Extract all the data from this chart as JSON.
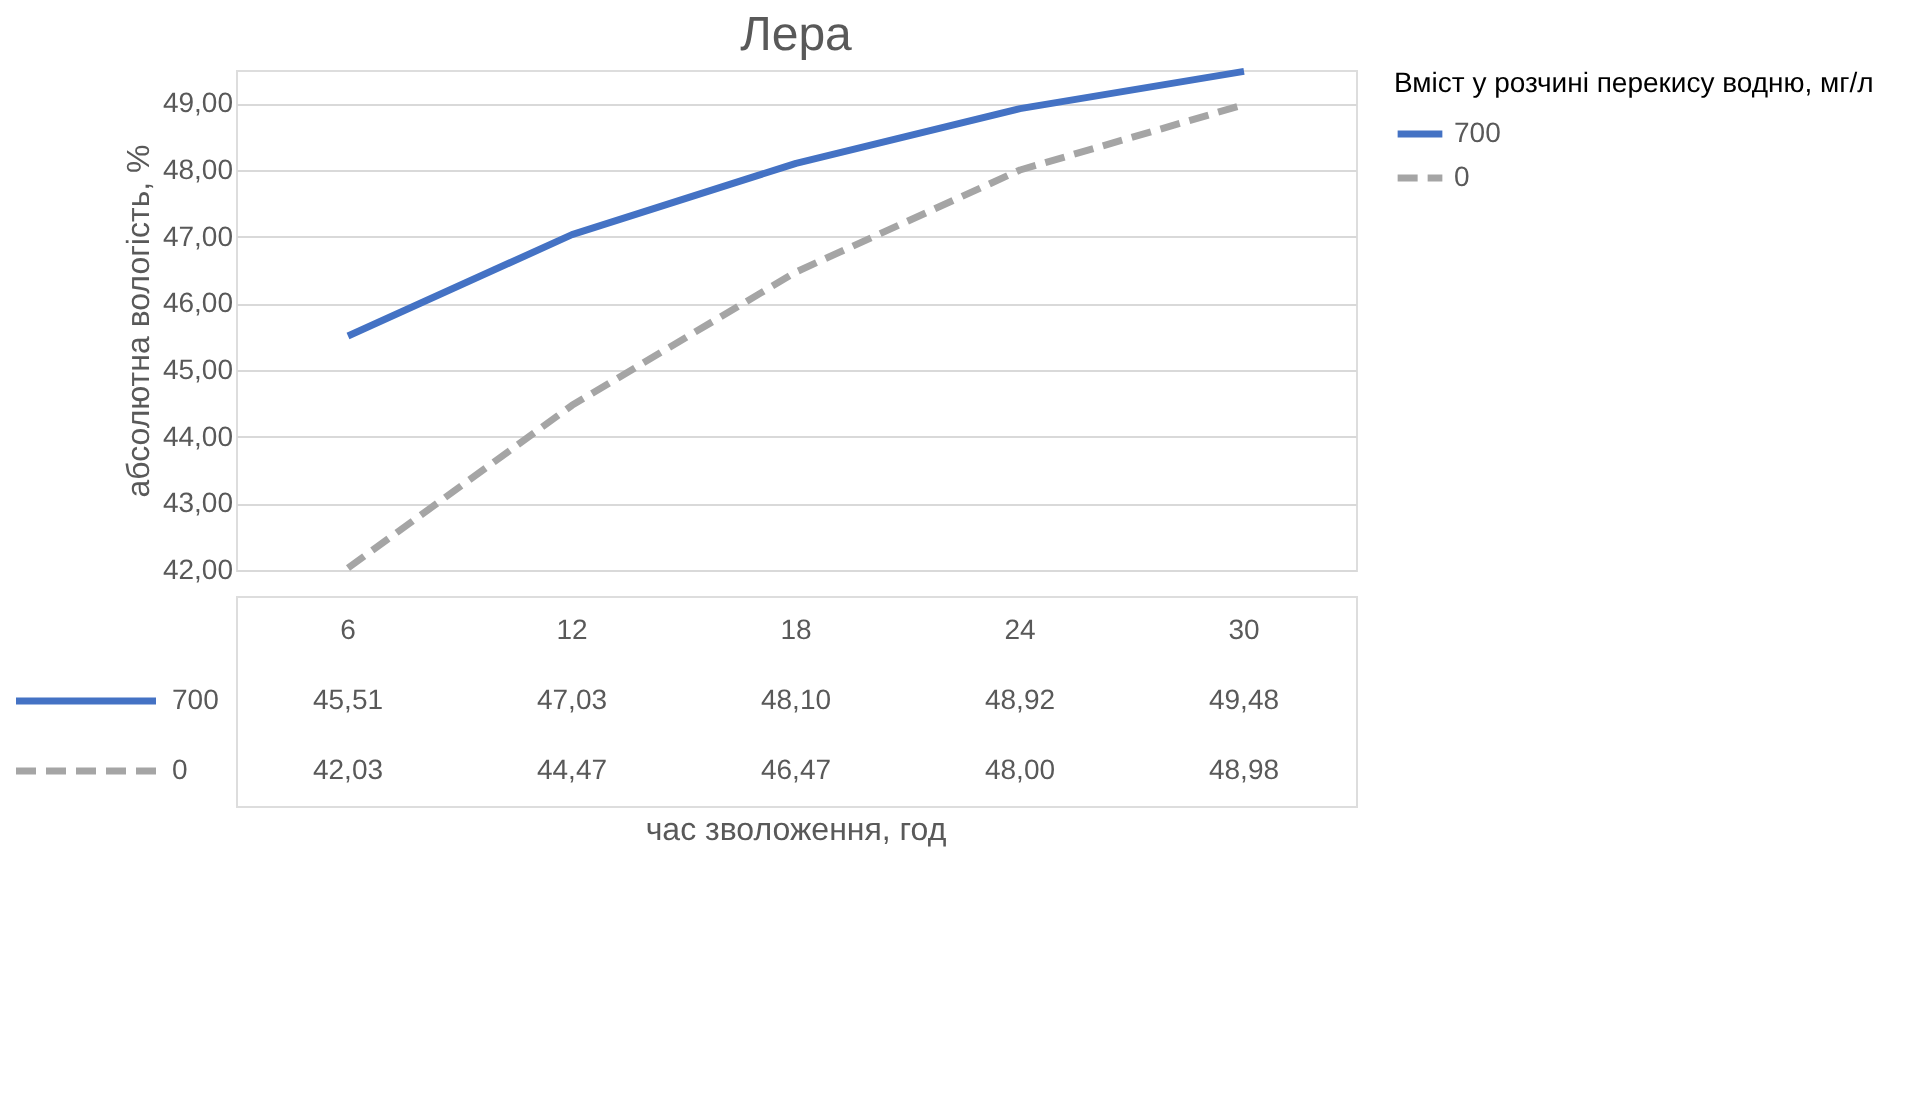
{
  "chart_data": {
    "type": "line",
    "title": "Лера",
    "annotations": [
      "час зволоження, год"
    ],
    "ylabel": "абсолютна вологість, %",
    "legend_title": "Вміст у розчині перекису водню, мг/л",
    "categories": [
      "6",
      "12",
      "18",
      "24",
      "30"
    ],
    "series": [
      {
        "name": "700",
        "color": "#4472c4",
        "line_style": "solid",
        "values": [
          45.51,
          47.03,
          48.1,
          48.92,
          49.48
        ],
        "value_labels": [
          "45,51",
          "47,03",
          "48,10",
          "48,92",
          "49,48"
        ]
      },
      {
        "name": "0",
        "color": "#a5a5a5",
        "line_style": "dashed",
        "values": [
          42.03,
          44.47,
          46.47,
          48.0,
          48.98
        ],
        "value_labels": [
          "42,03",
          "44,47",
          "46,47",
          "48,00",
          "48,98"
        ]
      }
    ],
    "ylim": [
      42,
      49.5
    ],
    "yticks": [
      {
        "value": 42,
        "label": "42,00"
      },
      {
        "value": 43,
        "label": "43,00"
      },
      {
        "value": 44,
        "label": "44,00"
      },
      {
        "value": 45,
        "label": "45,00"
      },
      {
        "value": 46,
        "label": "46,00"
      },
      {
        "value": 47,
        "label": "47,00"
      },
      {
        "value": 48,
        "label": "48,00"
      },
      {
        "value": 49,
        "label": "49,00"
      }
    ],
    "grid": "y",
    "legend": "right"
  }
}
